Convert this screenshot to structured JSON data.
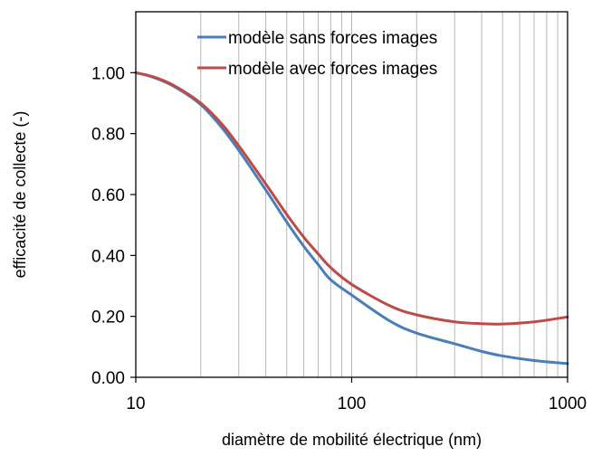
{
  "chart_data": {
    "type": "line",
    "title": "",
    "xlabel": "diamètre de mobilité électrique (nm)",
    "ylabel": "efficacité de collecte (-)",
    "xscale": "log",
    "xlim": [
      10,
      1000
    ],
    "ylim": [
      0.0,
      1.2
    ],
    "x_ticks": [
      10,
      100,
      1000
    ],
    "x_tick_labels": [
      "10",
      "100",
      "1000"
    ],
    "y_ticks": [
      0.0,
      0.2,
      0.4,
      0.6,
      0.8,
      1.0
    ],
    "y_tick_labels": [
      "0.00",
      "0.20",
      "0.40",
      "0.60",
      "0.80",
      "1.00"
    ],
    "grid": "vertical minor log gridlines",
    "legend": "top-right",
    "series": [
      {
        "name": "modèle sans forces images",
        "color": "#4a7ebb",
        "x": [
          10,
          12,
          15,
          20,
          25,
          30,
          40,
          50,
          60,
          70,
          80,
          100,
          150,
          200,
          300,
          400,
          500,
          700,
          1000
        ],
        "y": [
          1.0,
          0.985,
          0.955,
          0.895,
          0.82,
          0.745,
          0.615,
          0.51,
          0.43,
          0.37,
          0.32,
          0.27,
          0.185,
          0.145,
          0.11,
          0.085,
          0.07,
          0.055,
          0.045
        ]
      },
      {
        "name": "modèle avec forces images",
        "color": "#be4b48",
        "x": [
          10,
          12,
          15,
          20,
          25,
          30,
          40,
          50,
          60,
          70,
          80,
          100,
          150,
          200,
          300,
          400,
          500,
          700,
          1000
        ],
        "y": [
          1.0,
          0.987,
          0.958,
          0.9,
          0.832,
          0.76,
          0.635,
          0.535,
          0.46,
          0.405,
          0.36,
          0.305,
          0.235,
          0.205,
          0.182,
          0.176,
          0.175,
          0.182,
          0.198
        ]
      }
    ]
  }
}
